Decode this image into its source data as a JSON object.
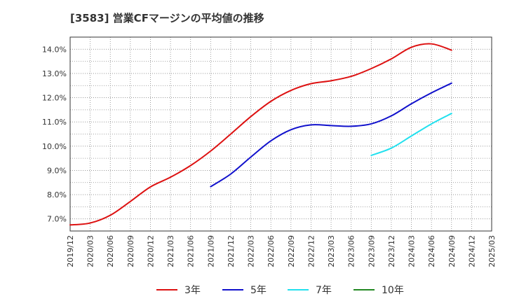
{
  "chart_data": {
    "type": "line",
    "title": "[3583]  営業CFマージンの平均値の推移",
    "xlabel": "",
    "ylabel": "",
    "x_ticks": [
      "2019/12",
      "2020/03",
      "2020/06",
      "2020/09",
      "2020/12",
      "2021/03",
      "2021/06",
      "2021/09",
      "2021/12",
      "2022/03",
      "2022/06",
      "2022/09",
      "2022/12",
      "2023/03",
      "2023/06",
      "2023/09",
      "2023/12",
      "2024/03",
      "2024/06",
      "2024/09",
      "2024/12",
      "2025/03"
    ],
    "y_ticks": [
      "7.0%",
      "8.0%",
      "9.0%",
      "10.0%",
      "11.0%",
      "12.0%",
      "13.0%",
      "14.0%"
    ],
    "y_tick_values": [
      7,
      8,
      9,
      10,
      11,
      12,
      13,
      14
    ],
    "ylim": [
      6.5,
      14.5
    ],
    "grid": true,
    "legend_position": "bottom",
    "series": [
      {
        "name": "3年",
        "color": "#dd1111",
        "values": [
          {
            "x": "2019/12",
            "y": 6.75
          },
          {
            "x": "2020/03",
            "y": 6.83
          },
          {
            "x": "2020/06",
            "y": 7.15
          },
          {
            "x": "2020/09",
            "y": 7.72
          },
          {
            "x": "2020/12",
            "y": 8.32
          },
          {
            "x": "2021/03",
            "y": 8.72
          },
          {
            "x": "2021/06",
            "y": 9.2
          },
          {
            "x": "2021/09",
            "y": 9.8
          },
          {
            "x": "2021/12",
            "y": 10.5
          },
          {
            "x": "2022/03",
            "y": 11.22
          },
          {
            "x": "2022/06",
            "y": 11.85
          },
          {
            "x": "2022/09",
            "y": 12.3
          },
          {
            "x": "2022/12",
            "y": 12.58
          },
          {
            "x": "2023/03",
            "y": 12.7
          },
          {
            "x": "2023/06",
            "y": 12.88
          },
          {
            "x": "2023/09",
            "y": 13.2
          },
          {
            "x": "2023/12",
            "y": 13.6
          },
          {
            "x": "2024/03",
            "y": 14.08
          },
          {
            "x": "2024/06",
            "y": 14.22
          },
          {
            "x": "2024/09",
            "y": 13.96
          }
        ]
      },
      {
        "name": "5年",
        "color": "#1111cc",
        "values": [
          {
            "x": "2021/09",
            "y": 8.33
          },
          {
            "x": "2021/12",
            "y": 8.85
          },
          {
            "x": "2022/03",
            "y": 9.55
          },
          {
            "x": "2022/06",
            "y": 10.22
          },
          {
            "x": "2022/09",
            "y": 10.68
          },
          {
            "x": "2022/12",
            "y": 10.88
          },
          {
            "x": "2023/03",
            "y": 10.85
          },
          {
            "x": "2023/06",
            "y": 10.82
          },
          {
            "x": "2023/09",
            "y": 10.92
          },
          {
            "x": "2023/12",
            "y": 11.25
          },
          {
            "x": "2024/03",
            "y": 11.75
          },
          {
            "x": "2024/06",
            "y": 12.2
          },
          {
            "x": "2024/09",
            "y": 12.6
          }
        ]
      },
      {
        "name": "7年",
        "color": "#22e0ee",
        "values": [
          {
            "x": "2023/09",
            "y": 9.62
          },
          {
            "x": "2023/12",
            "y": 9.92
          },
          {
            "x": "2024/03",
            "y": 10.42
          },
          {
            "x": "2024/06",
            "y": 10.92
          },
          {
            "x": "2024/09",
            "y": 11.35
          }
        ]
      },
      {
        "name": "10年",
        "color": "#228822",
        "values": []
      }
    ]
  }
}
